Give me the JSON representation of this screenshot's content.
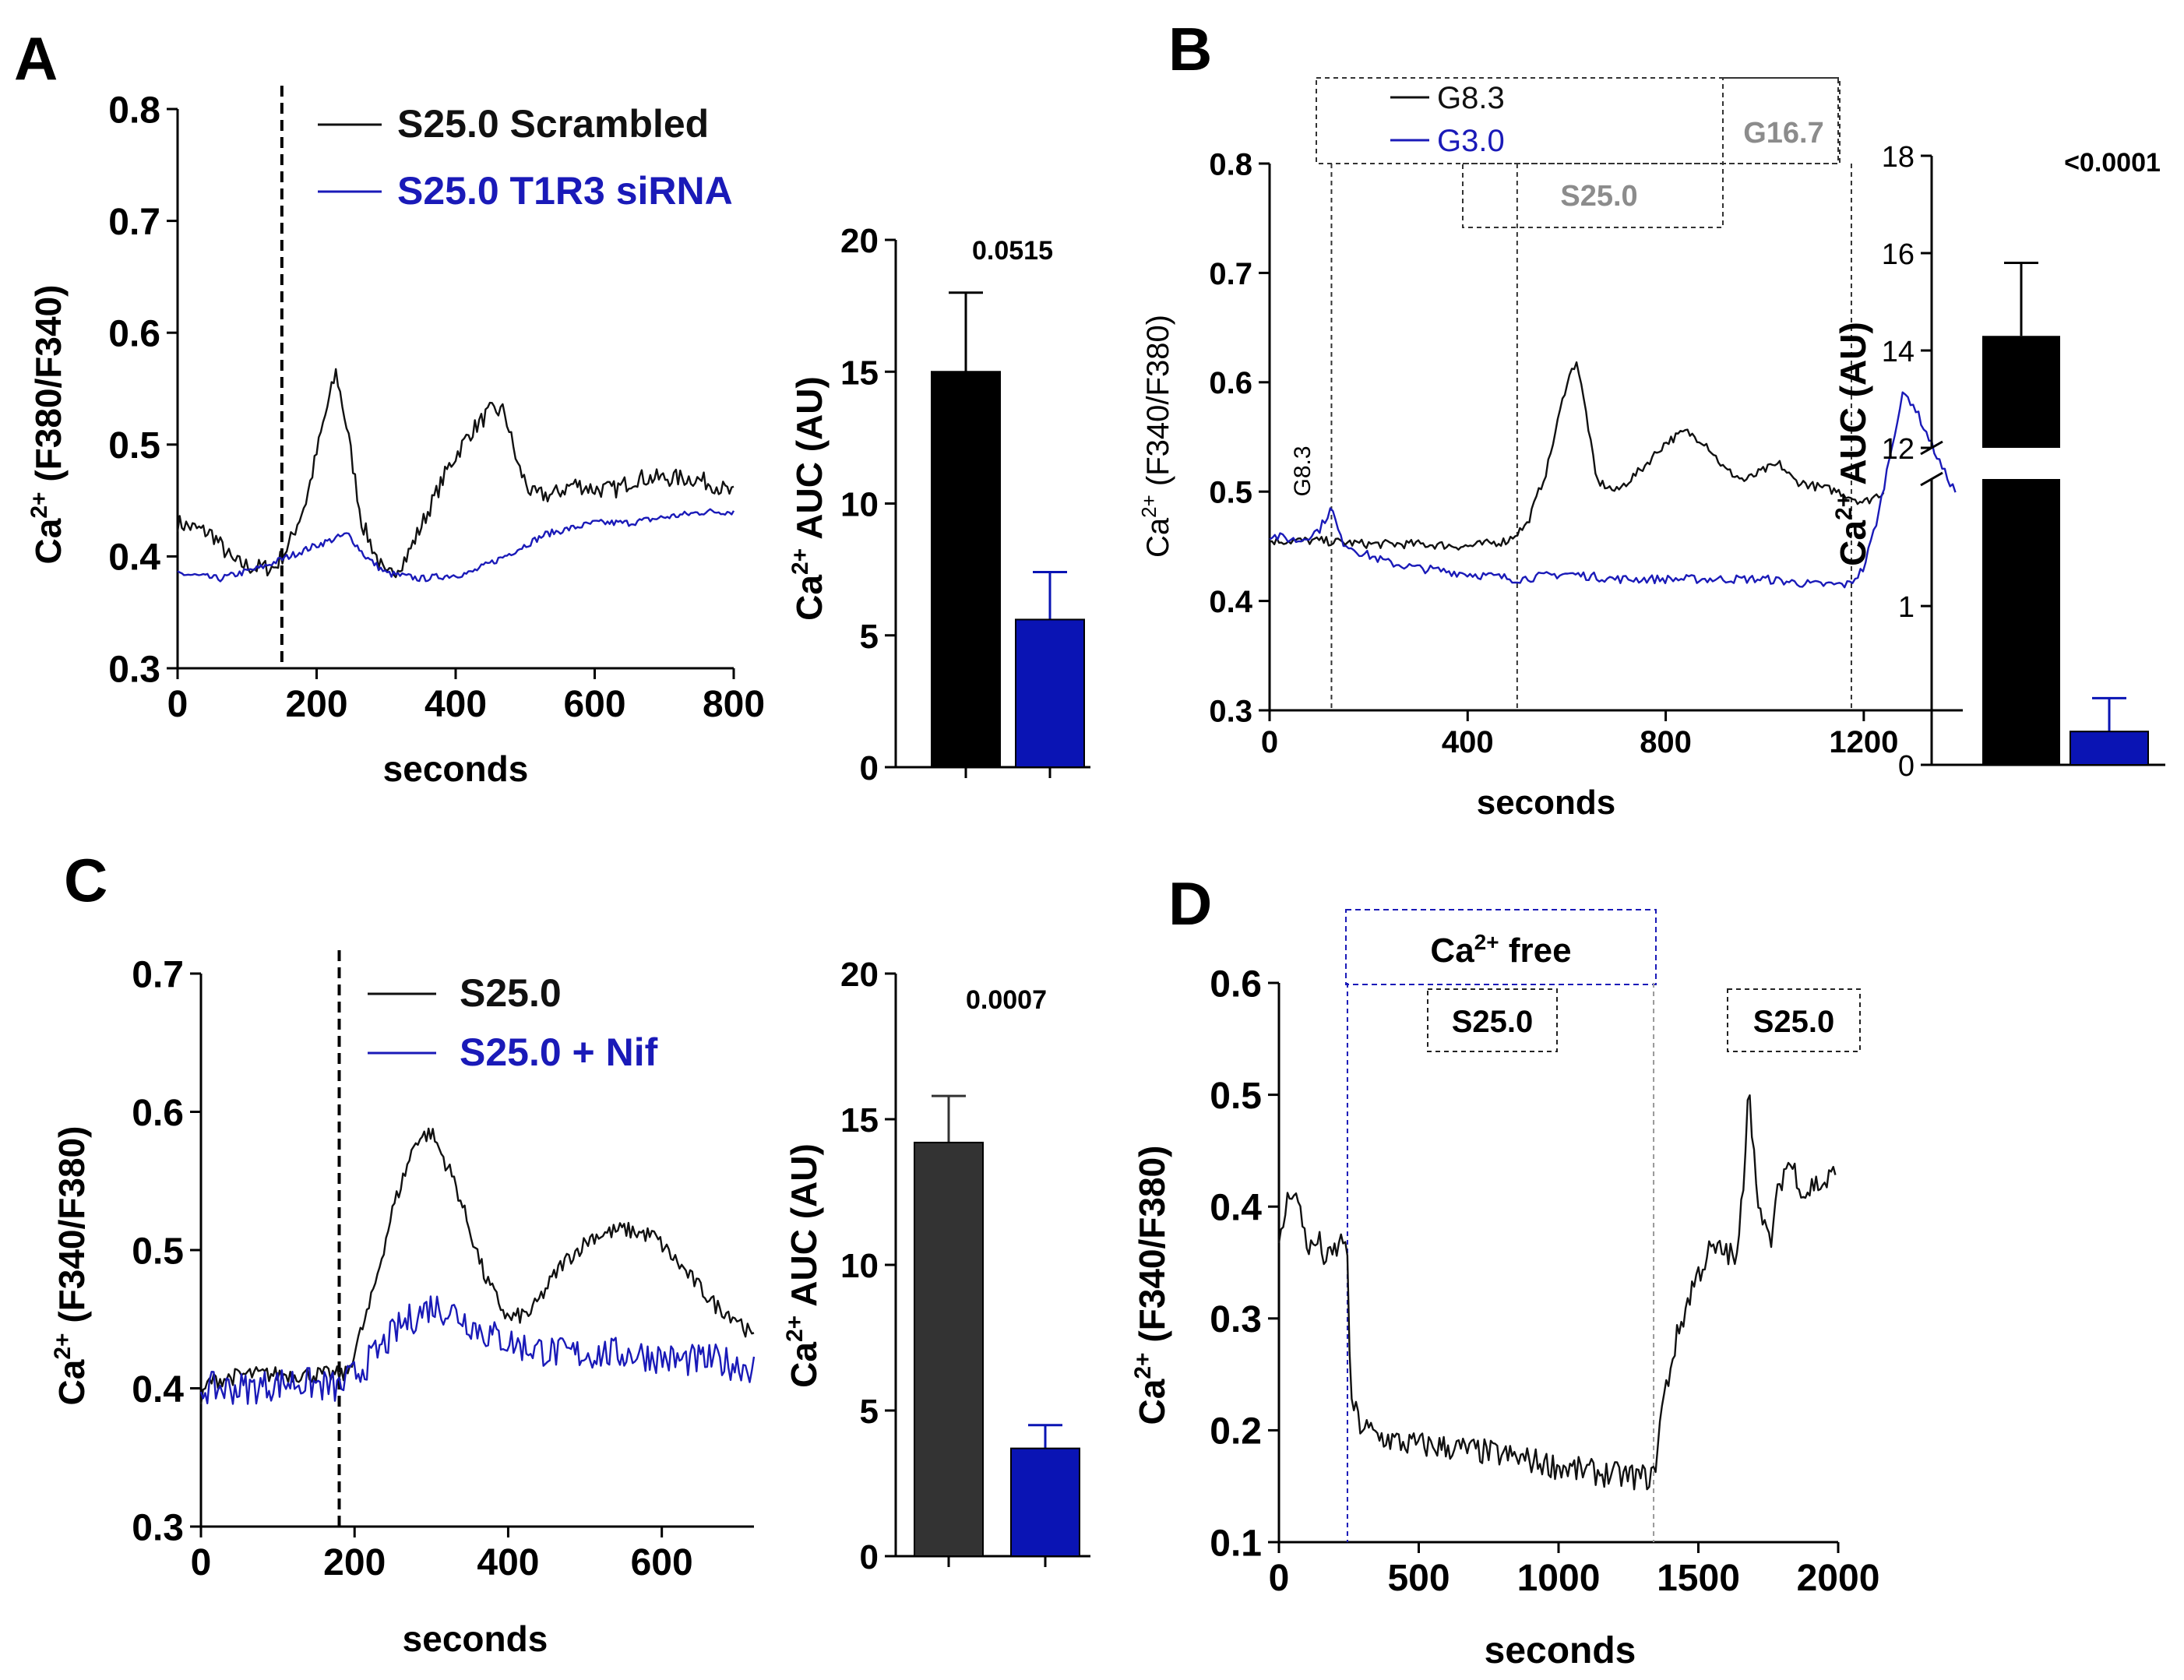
{
  "colors": {
    "black": "#111111",
    "blue": "#1a1ab8",
    "bar_black": "#000000",
    "bar_dark": "#333333",
    "bar_blue": "#0a14b4",
    "gray": "#8c8c8c"
  },
  "chart_data": [
    {
      "panel": "A",
      "type": "line",
      "title": "",
      "xlabel": "seconds",
      "ylabel": "Ca2+ (F380/F340)",
      "xlim": [
        0,
        800
      ],
      "ylim": [
        0.3,
        0.8
      ],
      "xticks": [
        0,
        200,
        400,
        600,
        800
      ],
      "yticks": [
        0.3,
        0.4,
        0.5,
        0.6,
        0.7,
        0.8
      ],
      "stimulus_line_x": 150,
      "legend": [
        "S25.0 Scrambled",
        "S25.0 T1R3 siRNA"
      ],
      "series": [
        {
          "name": "S25.0 Scrambled",
          "color": "black",
          "noise": 0.008,
          "points": [
            [
              0,
              0.43
            ],
            [
              50,
              0.42
            ],
            [
              80,
              0.395
            ],
            [
              110,
              0.39
            ],
            [
              140,
              0.39
            ],
            [
              160,
              0.41
            ],
            [
              185,
              0.45
            ],
            [
              210,
              0.52
            ],
            [
              228,
              0.565
            ],
            [
              245,
              0.51
            ],
            [
              265,
              0.43
            ],
            [
              300,
              0.38
            ],
            [
              330,
              0.4
            ],
            [
              360,
              0.44
            ],
            [
              390,
              0.48
            ],
            [
              420,
              0.51
            ],
            [
              450,
              0.53
            ],
            [
              470,
              0.53
            ],
            [
              490,
              0.48
            ],
            [
              510,
              0.455
            ],
            [
              540,
              0.455
            ],
            [
              570,
              0.465
            ],
            [
              600,
              0.46
            ],
            [
              630,
              0.46
            ],
            [
              660,
              0.47
            ],
            [
              700,
              0.47
            ],
            [
              740,
              0.47
            ],
            [
              770,
              0.465
            ],
            [
              800,
              0.455
            ]
          ]
        },
        {
          "name": "S25.0 T1R3 siRNA",
          "color": "blue",
          "noise": 0.003,
          "points": [
            [
              0,
              0.385
            ],
            [
              60,
              0.38
            ],
            [
              120,
              0.39
            ],
            [
              160,
              0.4
            ],
            [
              200,
              0.41
            ],
            [
              245,
              0.42
            ],
            [
              270,
              0.4
            ],
            [
              300,
              0.385
            ],
            [
              350,
              0.38
            ],
            [
              420,
              0.385
            ],
            [
              470,
              0.4
            ],
            [
              530,
              0.42
            ],
            [
              600,
              0.43
            ],
            [
              650,
              0.43
            ],
            [
              700,
              0.435
            ],
            [
              760,
              0.44
            ],
            [
              800,
              0.44
            ]
          ]
        }
      ]
    },
    {
      "panel": "A",
      "type": "bar",
      "ylabel": "Ca2+ AUC (AU)",
      "ylim": [
        0,
        20
      ],
      "yticks": [
        0,
        5,
        10,
        15,
        20
      ],
      "annotation": "0.0515",
      "categories": [
        "S25.0 Scrambled",
        "S25.0 T1R3 siRNA"
      ],
      "values": [
        15.0,
        5.6
      ],
      "errors": [
        3.0,
        1.8
      ],
      "bar_colors": [
        "bar_black",
        "bar_blue"
      ]
    },
    {
      "panel": "B",
      "type": "line",
      "xlabel": "seconds",
      "ylabel": "Ca2+ (F340/F380)",
      "xlim": [
        0,
        1400
      ],
      "ylim": [
        0.3,
        0.8
      ],
      "xticks": [
        0,
        400,
        800,
        1200
      ],
      "yticks": [
        0.3,
        0.4,
        0.5,
        0.6,
        0.7,
        0.8
      ],
      "legend": [
        "G8.3",
        "G3.0"
      ],
      "period_labels": {
        "g83": "G8.3",
        "s25": "S25.0",
        "g167": "G16.7"
      },
      "period_x": [
        125,
        500,
        1175
      ],
      "series": [
        {
          "name": "G8.3",
          "color": "black",
          "noise": 0.004,
          "x_end": 1240,
          "points": [
            [
              0,
              0.455
            ],
            [
              100,
              0.455
            ],
            [
              200,
              0.452
            ],
            [
              300,
              0.452
            ],
            [
              400,
              0.45
            ],
            [
              480,
              0.455
            ],
            [
              520,
              0.47
            ],
            [
              560,
              0.52
            ],
            [
              600,
              0.6
            ],
            [
              620,
              0.62
            ],
            [
              640,
              0.57
            ],
            [
              660,
              0.51
            ],
            [
              700,
              0.5
            ],
            [
              750,
              0.52
            ],
            [
              800,
              0.545
            ],
            [
              840,
              0.555
            ],
            [
              880,
              0.545
            ],
            [
              920,
              0.52
            ],
            [
              960,
              0.51
            ],
            [
              1000,
              0.52
            ],
            [
              1030,
              0.525
            ],
            [
              1060,
              0.51
            ],
            [
              1100,
              0.505
            ],
            [
              1150,
              0.5
            ],
            [
              1200,
              0.49
            ],
            [
              1240,
              0.5
            ]
          ]
        },
        {
          "name": "G3.0",
          "color": "blue",
          "noise": 0.004,
          "points": [
            [
              0,
              0.46
            ],
            [
              60,
              0.455
            ],
            [
              100,
              0.465
            ],
            [
              125,
              0.485
            ],
            [
              145,
              0.455
            ],
            [
              180,
              0.445
            ],
            [
              240,
              0.435
            ],
            [
              300,
              0.43
            ],
            [
              400,
              0.425
            ],
            [
              500,
              0.42
            ],
            [
              600,
              0.425
            ],
            [
              700,
              0.42
            ],
            [
              800,
              0.42
            ],
            [
              900,
              0.42
            ],
            [
              1000,
              0.42
            ],
            [
              1100,
              0.415
            ],
            [
              1170,
              0.415
            ],
            [
              1200,
              0.43
            ],
            [
              1230,
              0.48
            ],
            [
              1260,
              0.55
            ],
            [
              1280,
              0.59
            ],
            [
              1300,
              0.58
            ],
            [
              1330,
              0.55
            ],
            [
              1360,
              0.52
            ],
            [
              1385,
              0.5
            ]
          ]
        }
      ]
    },
    {
      "panel": "B",
      "type": "bar",
      "ylabel": "Ca2+ AUC (AU)",
      "ylim_lower": [
        0,
        1.8
      ],
      "ylim_upper": [
        12,
        18
      ],
      "yticks_lower": [
        0,
        1
      ],
      "yticks_upper": [
        12,
        14,
        16,
        18
      ],
      "annotation": "<0.0001",
      "categories": [
        "G8.3",
        "G3.0"
      ],
      "values": [
        14.3,
        0.21
      ],
      "errors": [
        1.5,
        0.21
      ],
      "bar_colors": [
        "bar_black",
        "bar_blue"
      ]
    },
    {
      "panel": "C",
      "type": "line",
      "xlabel": "seconds",
      "ylabel": "Ca2+ (F340/F380)",
      "xlim": [
        0,
        720
      ],
      "ylim": [
        0.3,
        0.7
      ],
      "xticks": [
        0,
        200,
        400,
        600
      ],
      "yticks": [
        0.3,
        0.4,
        0.5,
        0.6,
        0.7
      ],
      "stimulus_line_x": 180,
      "legend": [
        "S25.0",
        "S25.0 + Nif"
      ],
      "series": [
        {
          "name": "S25.0",
          "color": "black",
          "noise": 0.006,
          "points": [
            [
              0,
              0.39
            ],
            [
              10,
              0.405
            ],
            [
              60,
              0.41
            ],
            [
              120,
              0.41
            ],
            [
              170,
              0.41
            ],
            [
              190,
              0.41
            ],
            [
              220,
              0.46
            ],
            [
              250,
              0.53
            ],
            [
              280,
              0.58
            ],
            [
              300,
              0.585
            ],
            [
              330,
              0.55
            ],
            [
              370,
              0.48
            ],
            [
              400,
              0.45
            ],
            [
              430,
              0.455
            ],
            [
              470,
              0.49
            ],
            [
              510,
              0.51
            ],
            [
              550,
              0.515
            ],
            [
              590,
              0.51
            ],
            [
              630,
              0.485
            ],
            [
              670,
              0.46
            ],
            [
              700,
              0.45
            ],
            [
              720,
              0.435
            ]
          ]
        },
        {
          "name": "S25.0 + Nif",
          "color": "blue",
          "noise": 0.012,
          "points": [
            [
              0,
              0.4
            ],
            [
              60,
              0.4
            ],
            [
              120,
              0.405
            ],
            [
              180,
              0.4
            ],
            [
              220,
              0.42
            ],
            [
              260,
              0.445
            ],
            [
              300,
              0.46
            ],
            [
              330,
              0.455
            ],
            [
              370,
              0.44
            ],
            [
              420,
              0.43
            ],
            [
              470,
              0.425
            ],
            [
              520,
              0.425
            ],
            [
              570,
              0.425
            ],
            [
              620,
              0.42
            ],
            [
              670,
              0.42
            ],
            [
              720,
              0.415
            ]
          ]
        }
      ]
    },
    {
      "panel": "C",
      "type": "bar",
      "ylabel": "Ca2+ AUC (AU)",
      "ylim": [
        0,
        20
      ],
      "yticks": [
        0,
        5,
        10,
        15,
        20
      ],
      "annotation": "0.0007",
      "categories": [
        "S25.0",
        "S25.0 + Nif"
      ],
      "values": [
        14.2,
        3.7
      ],
      "errors": [
        1.6,
        0.8
      ],
      "bar_colors": [
        "bar_dark",
        "bar_blue"
      ]
    },
    {
      "panel": "D",
      "type": "line",
      "xlabel": "seconds",
      "ylabel": "Ca2+ (F340/F380)",
      "xlim": [
        0,
        2000
      ],
      "ylim": [
        0.1,
        0.6
      ],
      "xticks": [
        0,
        500,
        1000,
        1500,
        2000
      ],
      "yticks": [
        0.1,
        0.2,
        0.3,
        0.4,
        0.5,
        0.6
      ],
      "ca_free_range": [
        245,
        1340
      ],
      "labels": {
        "ca_free_prefix": "Ca",
        "ca_free_sup": "2+",
        "ca_free_suffix": " free",
        "s25_first": "S25.0",
        "s25_second": "S25.0"
      },
      "series": [
        {
          "name": "trace",
          "color": "black",
          "noise": 0.012,
          "points": [
            [
              0,
              0.36
            ],
            [
              25,
              0.4
            ],
            [
              50,
              0.42
            ],
            [
              80,
              0.39
            ],
            [
              110,
              0.36
            ],
            [
              140,
              0.37
            ],
            [
              170,
              0.35
            ],
            [
              200,
              0.36
            ],
            [
              230,
              0.37
            ],
            [
              243,
              0.38
            ],
            [
              247,
              0.32
            ],
            [
              252,
              0.26
            ],
            [
              262,
              0.225
            ],
            [
              290,
              0.205
            ],
            [
              350,
              0.195
            ],
            [
              450,
              0.188
            ],
            [
              600,
              0.185
            ],
            [
              750,
              0.18
            ],
            [
              900,
              0.173
            ],
            [
              1050,
              0.165
            ],
            [
              1200,
              0.16
            ],
            [
              1300,
              0.158
            ],
            [
              1340,
              0.158
            ],
            [
              1370,
              0.22
            ],
            [
              1420,
              0.28
            ],
            [
              1480,
              0.33
            ],
            [
              1540,
              0.36
            ],
            [
              1600,
              0.36
            ],
            [
              1640,
              0.35
            ],
            [
              1665,
              0.44
            ],
            [
              1680,
              0.52
            ],
            [
              1700,
              0.44
            ],
            [
              1730,
              0.38
            ],
            [
              1760,
              0.37
            ],
            [
              1790,
              0.42
            ],
            [
              1820,
              0.44
            ],
            [
              1850,
              0.43
            ],
            [
              1880,
              0.41
            ],
            [
              1910,
              0.42
            ],
            [
              1950,
              0.42
            ],
            [
              1990,
              0.43
            ]
          ]
        }
      ]
    }
  ],
  "panels": {
    "A": {
      "label": "A",
      "ylabel_pre": "Ca",
      "ylabel_sup": "2+",
      "ylabel_post": " (F380/F340)",
      "xlabel": "seconds",
      "bar_ylabel_pre": "Ca",
      "bar_ylabel_sup": "2+",
      "bar_ylabel_post": " AUC (AU)"
    },
    "B": {
      "label": "B",
      "ylabel_pre": "Ca",
      "ylabel_sup": "2+",
      "ylabel_post": " (F340/F380)",
      "xlabel": "seconds",
      "bar_ylabel_pre": "Ca",
      "bar_ylabel_sup": "2+",
      "bar_ylabel_post": " AUC (AU)"
    },
    "C": {
      "label": "C",
      "ylabel_pre": "Ca",
      "ylabel_sup": "2+",
      "ylabel_post": " (F340/F380)",
      "xlabel": "seconds",
      "bar_ylabel_pre": "Ca",
      "bar_ylabel_sup": "2+",
      "bar_ylabel_post": " AUC (AU)"
    },
    "D": {
      "label": "D",
      "ylabel_pre": "Ca",
      "ylabel_sup": "2+",
      "ylabel_post": " (F340/F380)",
      "xlabel": "seconds"
    }
  }
}
